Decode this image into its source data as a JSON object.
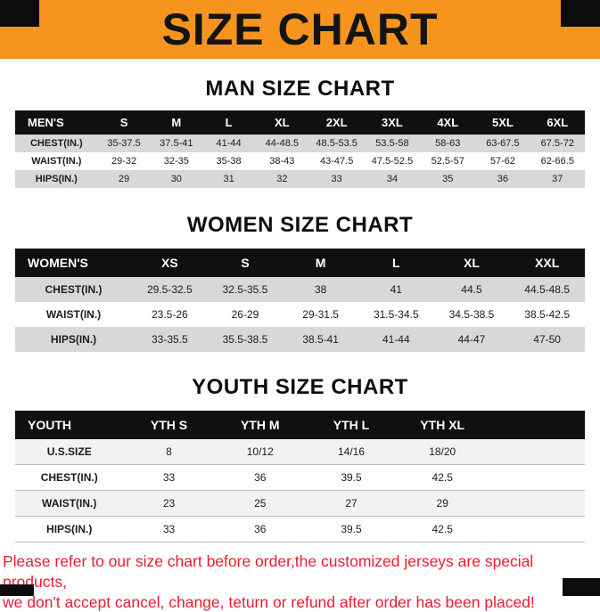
{
  "banner": {
    "title": "SIZE CHART"
  },
  "colors": {
    "banner_bg": "#F7941E",
    "header_bg": "#101010",
    "stripe": "#D8D8D8",
    "note_red": "#EC1C2E"
  },
  "sections": [
    {
      "title": "MAN SIZE CHART",
      "header": [
        "MEN'S",
        "S",
        "M",
        "L",
        "XL",
        "2XL",
        "3XL",
        "4XL",
        "5XL",
        "6XL"
      ],
      "rows": [
        {
          "label": "CHEST(IN.)",
          "values": [
            "35-37.5",
            "37.5-41",
            "41-44",
            "44-48.5",
            "48.5-53.5",
            "53.5-58",
            "58-63",
            "63-67.5",
            "67.5-72"
          ]
        },
        {
          "label": "WAIST(IN.)",
          "values": [
            "29-32",
            "32-35",
            "35-38",
            "38-43",
            "43-47.5",
            "47.5-52.5",
            "52.5-57",
            "57-62",
            "62-66.5"
          ]
        },
        {
          "label": "HIPS(IN.)",
          "values": [
            "29",
            "30",
            "31",
            "32",
            "33",
            "34",
            "35",
            "36",
            "37"
          ]
        }
      ]
    },
    {
      "title": "WOMEN SIZE CHART",
      "header": [
        "WOMEN'S",
        "XS",
        "S",
        "M",
        "L",
        "XL",
        "XXL"
      ],
      "rows": [
        {
          "label": "CHEST(IN.)",
          "values": [
            "29.5-32.5",
            "32.5-35.5",
            "38",
            "41",
            "44.5",
            "44.5-48.5"
          ]
        },
        {
          "label": "WAIST(IN.)",
          "values": [
            "23.5-26",
            "26-29",
            "29-31.5",
            "31.5-34.5",
            "34.5-38.5",
            "38.5-42.5"
          ]
        },
        {
          "label": "HIPS(IN.)",
          "values": [
            "33-35.5",
            "35.5-38.5",
            "38.5-41",
            "41-44",
            "44-47",
            "47-50"
          ]
        }
      ]
    },
    {
      "title": "YOUTH SIZE CHART",
      "header": [
        "YOUTH",
        "YTH S",
        "YTH M",
        "YTH L",
        "YTH XL"
      ],
      "rows": [
        {
          "label": "U.S.SIZE",
          "values": [
            "8",
            "10/12",
            "14/16",
            "18/20"
          ]
        },
        {
          "label": "CHEST(IN.)",
          "values": [
            "33",
            "36",
            "39.5",
            "42.5"
          ]
        },
        {
          "label": "WAIST(IN.)",
          "values": [
            "23",
            "25",
            "27",
            "29"
          ]
        },
        {
          "label": "HIPS(IN.)",
          "values": [
            "33",
            "36",
            "39.5",
            "42.5"
          ]
        }
      ]
    }
  ],
  "footer": {
    "line1": "Please refer to our size chart before order,the customized jerseys are special products,",
    "line2": "we don't accept cancel, change, teturn or refund after order has been placed!"
  }
}
